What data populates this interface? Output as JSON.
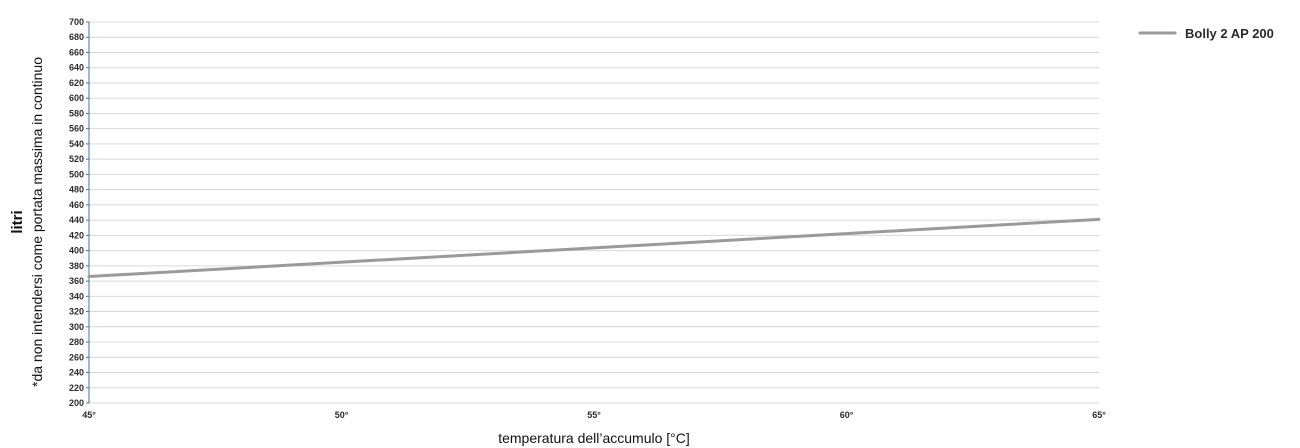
{
  "colors": {
    "series": "#9a9a9a",
    "axis": "#4a6fa5",
    "grid": "#d9d9d9",
    "text": "#2b2b2b"
  },
  "chart_data": {
    "type": "line",
    "title": "",
    "ylabel": "litri",
    "ylabel_note": "*da non intendersi come portata massima in continuo",
    "xlabel": "temperatura dell’accumulo [°C]",
    "x": [
      45,
      65
    ],
    "xticks": [
      45,
      50,
      55,
      60,
      65
    ],
    "xtick_labels": [
      "45°",
      "50°",
      "55°",
      "60°",
      "65°"
    ],
    "xlim": [
      45,
      65
    ],
    "ylim": [
      200,
      700
    ],
    "ytick_step": 20,
    "grid": true,
    "legend_position": "top-right",
    "series": [
      {
        "name": "Bolly 2 AP 200",
        "color": "#9a9a9a",
        "values": [
          366,
          441
        ]
      }
    ]
  }
}
